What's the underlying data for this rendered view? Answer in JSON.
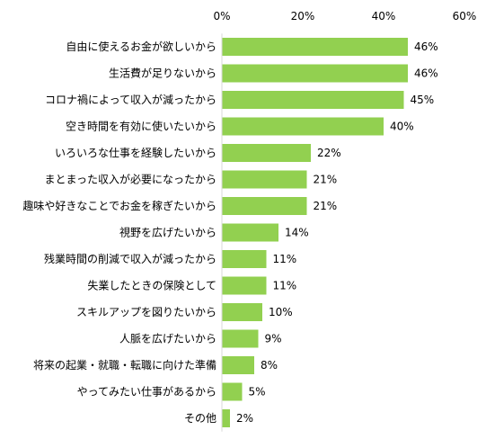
{
  "chart_data": {
    "type": "bar",
    "orientation": "horizontal",
    "title": "",
    "xlabel": "",
    "ylabel": "",
    "xlim": [
      0,
      60
    ],
    "ticks": [
      0,
      20,
      40,
      60
    ],
    "tick_labels": [
      "0%",
      "20%",
      "40%",
      "60%"
    ],
    "axis_position": "top",
    "grid": false,
    "legend": "none",
    "bar_color": "#92d050",
    "categories": [
      "自由に使えるお金が欲しいから",
      "生活費が足りないから",
      "コロナ禍によって収入が減ったから",
      "空き時間を有効に使いたいから",
      "いろいろな仕事を経験したいから",
      "まとまった収入が必要になったから",
      "趣味や好きなことでお金を稼ぎたいから",
      "視野を広げたいから",
      "残業時間の削減で収入が減ったから",
      "失業したときの保険として",
      "スキルアップを図りたいから",
      "人脈を広げたいから",
      "将来の起業・就職・転職に向けた準備",
      "やってみたい仕事があるから",
      "その他"
    ],
    "values": [
      46,
      46,
      45,
      40,
      22,
      21,
      21,
      14,
      11,
      11,
      10,
      9,
      8,
      5,
      2
    ],
    "value_labels": [
      "46%",
      "46%",
      "45%",
      "40%",
      "22%",
      "21%",
      "21%",
      "14%",
      "11%",
      "11%",
      "10%",
      "9%",
      "8%",
      "5%",
      "2%"
    ]
  }
}
